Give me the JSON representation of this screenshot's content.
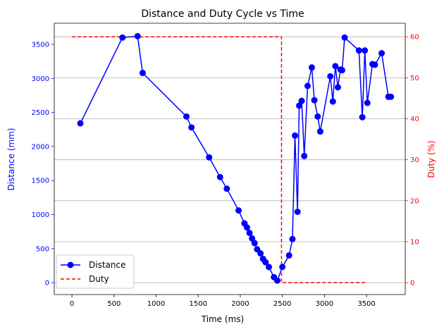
{
  "chart_data": {
    "type": "line",
    "title": "Distance and Duty Cycle vs Time",
    "xlabel": "Time (ms)",
    "ylabel_left": "Distance (mm)",
    "ylabel_right": "Duty (%)",
    "xlim": [
      -210,
      3960
    ],
    "ylim_left": [
      -175,
      3810
    ],
    "ylim_right": [
      -2.9,
      63.3
    ],
    "xticks": [
      0,
      500,
      1000,
      1500,
      2000,
      2500,
      3000,
      3500
    ],
    "yticks_left": [
      0,
      500,
      1000,
      1500,
      2000,
      2500,
      3000,
      3500
    ],
    "yticks_right": [
      0,
      10,
      20,
      30,
      40,
      50,
      60
    ],
    "grid": "horizontal, right axis",
    "legend_position": "lower-left",
    "colors": {
      "distance": "#0000ff",
      "duty": "#ff0000",
      "grid": "#b0b0b0"
    },
    "series": [
      {
        "name": "Distance",
        "axis": "left",
        "style": "solid-with-markers",
        "x": [
          100,
          600,
          780,
          840,
          1360,
          1420,
          1630,
          1760,
          1840,
          1980,
          2050,
          2080,
          2110,
          2140,
          2170,
          2200,
          2240,
          2270,
          2300,
          2340,
          2400,
          2440,
          2500,
          2580,
          2620,
          2650,
          2680,
          2700,
          2730,
          2760,
          2800,
          2850,
          2880,
          2920,
          2950,
          3070,
          3100,
          3130,
          3160,
          3190,
          3210,
          3240,
          3410,
          3450,
          3480,
          3510,
          3570,
          3600,
          3680,
          3760,
          3790
        ],
        "y": [
          2340,
          3600,
          3620,
          3080,
          2440,
          2280,
          1840,
          1550,
          1380,
          1060,
          870,
          810,
          730,
          650,
          580,
          490,
          430,
          350,
          300,
          230,
          80,
          30,
          230,
          400,
          640,
          2160,
          1040,
          2600,
          2670,
          1860,
          2890,
          3160,
          2680,
          2440,
          2220,
          3030,
          2660,
          3180,
          2870,
          3130,
          3120,
          3600,
          3410,
          2430,
          3410,
          2640,
          3210,
          3200,
          3370,
          2730,
          2730
        ]
      },
      {
        "name": "Duty",
        "axis": "right",
        "style": "dashed",
        "x": [
          0,
          2490,
          2490,
          3500
        ],
        "y": [
          60,
          60,
          0,
          0
        ]
      }
    ]
  }
}
